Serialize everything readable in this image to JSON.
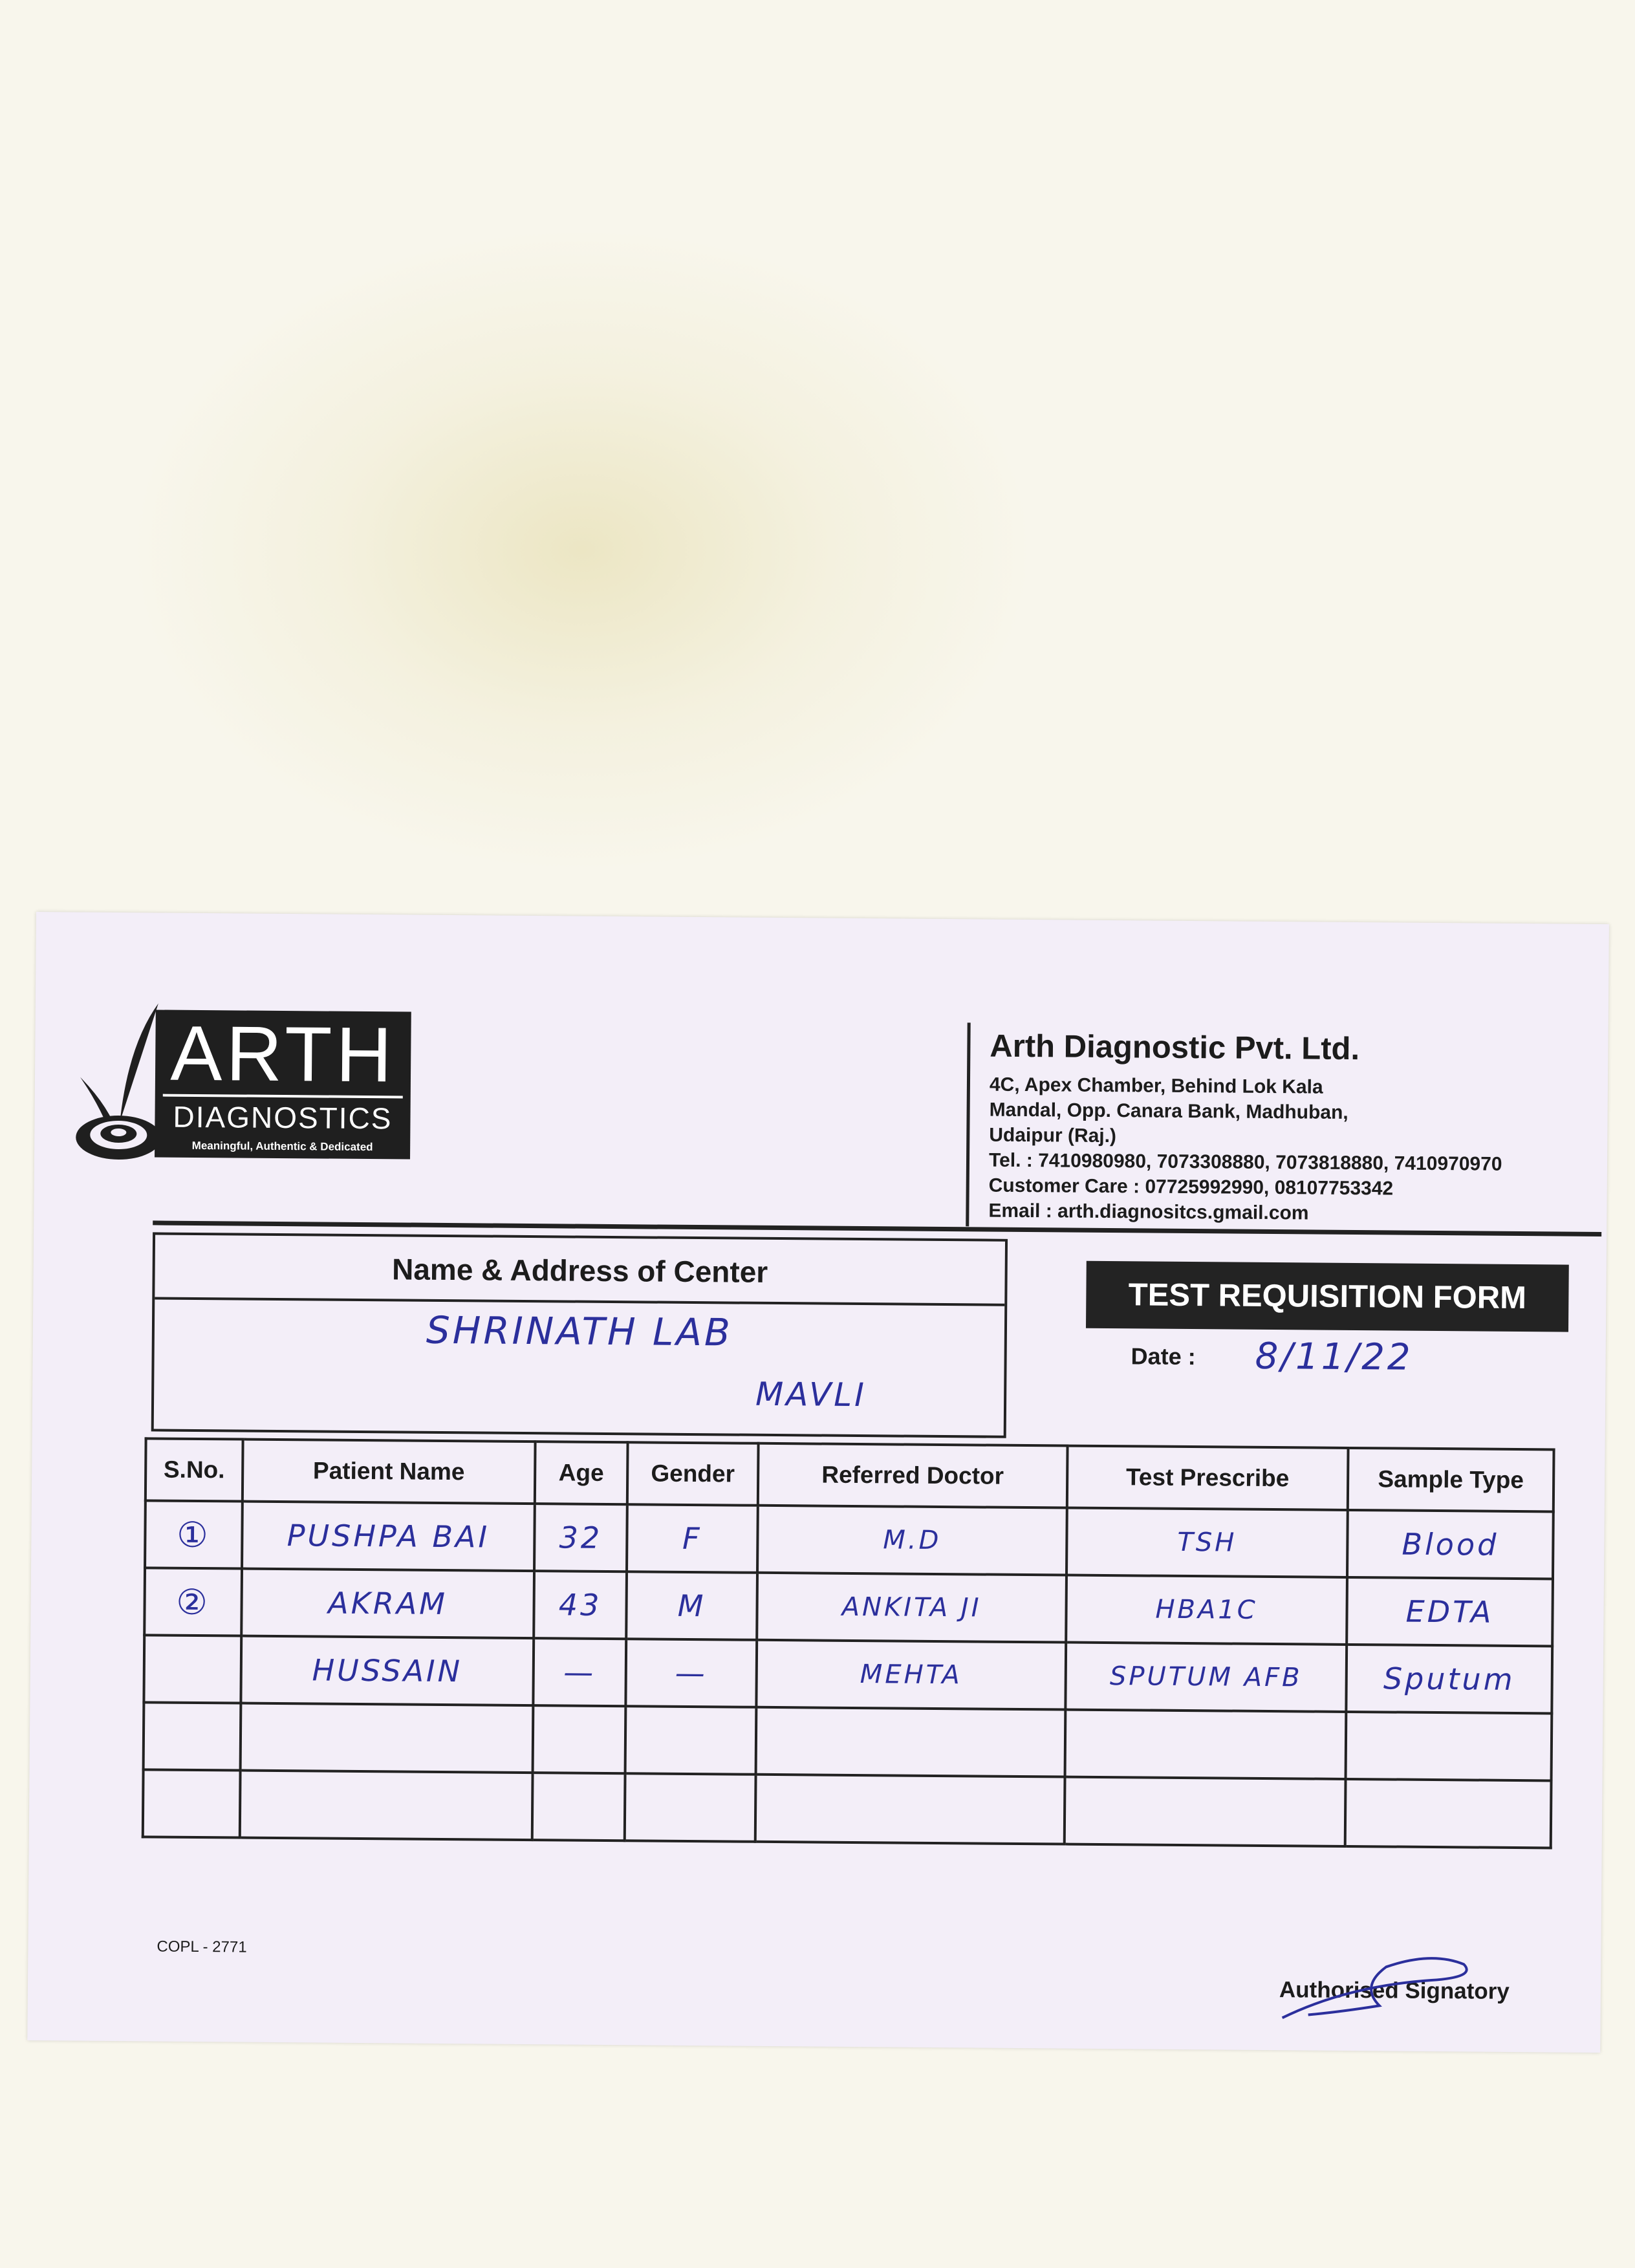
{
  "logo": {
    "brand": "ARTH",
    "sub": "DIAGNOSTICS",
    "tagline": "Meaningful, Authentic & Dedicated"
  },
  "company": {
    "name": "Arth Diagnostic Pvt. Ltd.",
    "address_lines": [
      "4C, Apex Chamber, Behind Lok Kala",
      "Mandal, Opp. Canara Bank, Madhuban,",
      "Udaipur (Raj.)"
    ],
    "tel": "Tel. : 7410980980, 7073308880, 7073818880, 7410970970",
    "customer_care": "Customer Care : 07725992990, 08107753342",
    "email": "Email : arth.diagnositcs.gmail.com"
  },
  "center": {
    "heading": "Name & Address of Center",
    "name": "SHRINATH LAB",
    "place": "MAVLI"
  },
  "form": {
    "title": "TEST REQUISITION FORM",
    "date_label": "Date :",
    "date_value": "8/11/22"
  },
  "table": {
    "headers": [
      "S.No.",
      "Patient Name",
      "Age",
      "Gender",
      "Referred Doctor",
      "Test Prescribe",
      "Sample Type"
    ],
    "rows": [
      [
        "①",
        "PUSHPA BAI",
        "32",
        "F",
        "M.D",
        "TSH",
        "Blood"
      ],
      [
        "②",
        "AKRAM",
        "43",
        "M",
        "ANKITA JI",
        "HBA1C",
        "EDTA"
      ],
      [
        "",
        "HUSSAIN",
        "—",
        "—",
        "MEHTA",
        "SPUTUM AFB",
        "Sputum"
      ],
      [
        "",
        "",
        "",
        "",
        "",
        "",
        ""
      ],
      [
        "",
        "",
        "",
        "",
        "",
        "",
        ""
      ]
    ]
  },
  "footer": {
    "code": "COPL - 2771",
    "signatory": "Authorised Signatory"
  },
  "colors": {
    "ink": "#2b2f9c",
    "slip": "#f3eef8",
    "print": "#1f1f1f"
  }
}
